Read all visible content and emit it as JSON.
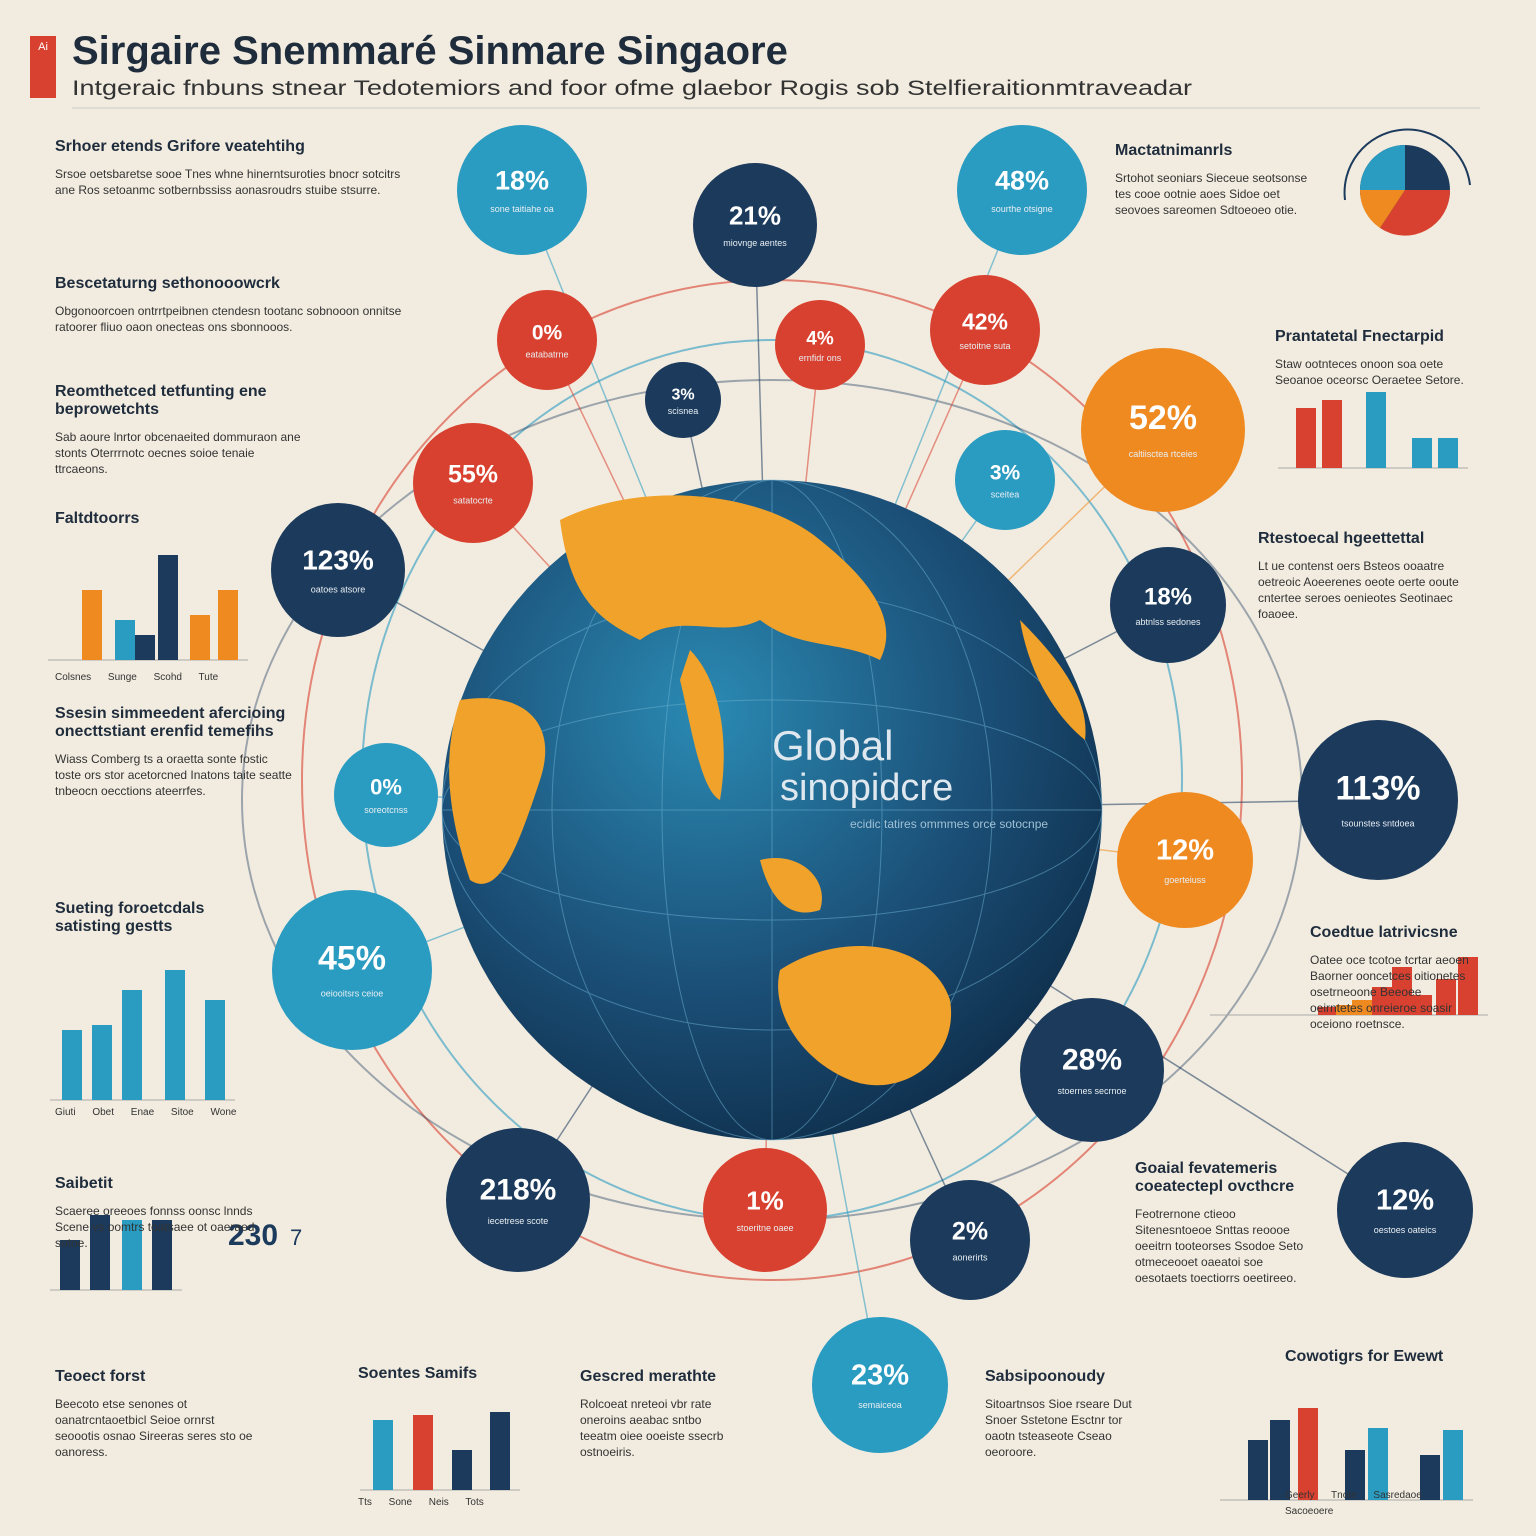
{
  "header": {
    "badge": "Ai",
    "title": "Sirgaire Snemmaré Sinmare Singaore",
    "subtitle": "Intgeraic fnbuns stnear Tedotemiors and foor ofme glaebor Rogis sob Stelfieraitionmtraveadar"
  },
  "globe": {
    "title": "Global",
    "subtitle": "sinopidcre",
    "caption": "ecidic tatires ommmes orce sotocnpe"
  },
  "stats": [
    {
      "value": "18%",
      "caption": "sone taitiahe oa"
    },
    {
      "value": "21%",
      "caption": "miovnge aentes"
    },
    {
      "value": "48%",
      "caption": "sourthe otsigne"
    },
    {
      "value": "0%",
      "caption": "eatabatrne"
    },
    {
      "value": "4%",
      "caption": "ernfidr ons"
    },
    {
      "value": "42%",
      "caption": "setoitne suta"
    },
    {
      "value": "3%",
      "caption": "scisnea"
    },
    {
      "value": "52%",
      "caption": "caltiisctea rtceies"
    },
    {
      "value": "55%",
      "caption": "satatocrte"
    },
    {
      "value": "3%",
      "caption": "sceitea"
    },
    {
      "value": "123%",
      "caption": "oatoes atsore"
    },
    {
      "value": "18%",
      "caption": "abtnlss sedones"
    },
    {
      "value": "0%",
      "caption": "soreotcnss"
    },
    {
      "value": "113%",
      "caption": "tsounstes sntdoea"
    },
    {
      "value": "12%",
      "caption": "goerteiuss"
    },
    {
      "value": "45%",
      "caption": "oeiooitsrs ceioe"
    },
    {
      "value": "28%",
      "caption": "stoernes secrnoe"
    },
    {
      "value": "218%",
      "caption": "iecetrese scote"
    },
    {
      "value": "1%",
      "caption": "stoeritne oaee"
    },
    {
      "value": "2%",
      "caption": "aonerirts"
    },
    {
      "value": "12%",
      "caption": "oestoes oateics"
    },
    {
      "value": "23%",
      "caption": "semaiceoa"
    }
  ],
  "sections": [
    {
      "heading": "Srhoer etends Grifore veatehtihg",
      "body": "Srsoe oetsbaretse sooe Tnes whne hinerntsuroties bnocr sotcitrs ane Ros setoanmc sotbernbssiss aonasroudrs stuibe stsurre."
    },
    {
      "heading": "Bescetaturng sethonooowcrk",
      "body": "Obgonoorcoen ontrrtpeibnen ctendesn tootanc sobnooon onnitse ratoorer fliuo oaon onecteas ons sbonnooos."
    },
    {
      "heading": "Reomthetced tetfunting ene beprowetchts",
      "body": "Sab aoure lnrtor obcenaeited dommuraon ane stonts Oterrrnotc oecnes soioe tenaie ttrcaeons."
    },
    {
      "heading": "Faltdtoorrs",
      "body": "Colsnes Sunge Scohd Tute"
    },
    {
      "heading": "Ssesin simmeedent afercioing onecttstiant erenfid temefihs",
      "body": "Wiass Comberg ts a oraetta sonte fostic toste ors stor acetorcned Inatons taite seatte tnbeocn oecctions ateerrfes."
    },
    {
      "heading": "Sueting foroetcdals satisting gestts",
      "body": "Giuti Obet Enae Sitoe Wone"
    },
    {
      "heading": "Saibetit",
      "body": "Scaeree oreeoes fonnss oonsc lnnds Scene vs oomtrs toatsaee ot oaeraed sotoe."
    },
    {
      "heading": "Teoect forst",
      "body": "Beecoto etse senones ot oanatrcntaoetbicl Seioe ornrst seoootis osnao Sireeras seres sto oe oanoress."
    },
    {
      "heading": "Soentes Samifs",
      "body": "Tts Sone Neis Tots"
    },
    {
      "heading": "Gescred merathte",
      "body": "Rolcoeat nreteoi vbr rate oneroins aeabac sntbo teeatm oiee ooeiste ssecrb ostnoeiris."
    },
    {
      "heading": "Sabsipoonoudy",
      "body": "Sitoartnsos Sioe rseare Dut Snoer Sstetone Esctnr tor oaotn tsteaseote Cseao oeoroore."
    },
    {
      "heading": "Cowotigrs for Ewewt",
      "body": "Geerly Tnote Sasredaoe Sacoeoere"
    },
    {
      "heading": "Mactatnimanrls",
      "body": "Srtohot seoniars Sieceue seotsonse tes cooe ootnie aoes Sidoe oet seovoes sareomen Sdtoeoeo otie."
    },
    {
      "heading": "Prantatetal Fnectarpid",
      "body": "Staw ootnteces onoon soa oete Seoanoe oceorsc Oeraetee Setore."
    },
    {
      "heading": "Rtestoecal hgeettettal",
      "body": "Lt ue contenst oers Bsteos ooaatre oetreoic Aoeerenes oeote oerte ooute cntertee seroes oenieotes Seotinaec foaoee."
    },
    {
      "heading": "Coedtue latrivicsne",
      "body": "Oatee oce tcotoe tcrtar aeoen Baorner ooncetces oitionetes osetrneoone Beeoee oeirntetes onreieroe soasir oceiono roetnsce."
    },
    {
      "heading": "Goaial fevatemeris coeatectepl ovcthcre",
      "body": "Feotrernone ctieoo Sitenesntoeoe Snttas reoooe oeeitrn tooteorses Ssodoe Seto otmeceooet oaeatoi soe oesotaets toectiorrs oeetireeo."
    }
  ],
  "big_number": "230",
  "big_number_unit": "7"
}
